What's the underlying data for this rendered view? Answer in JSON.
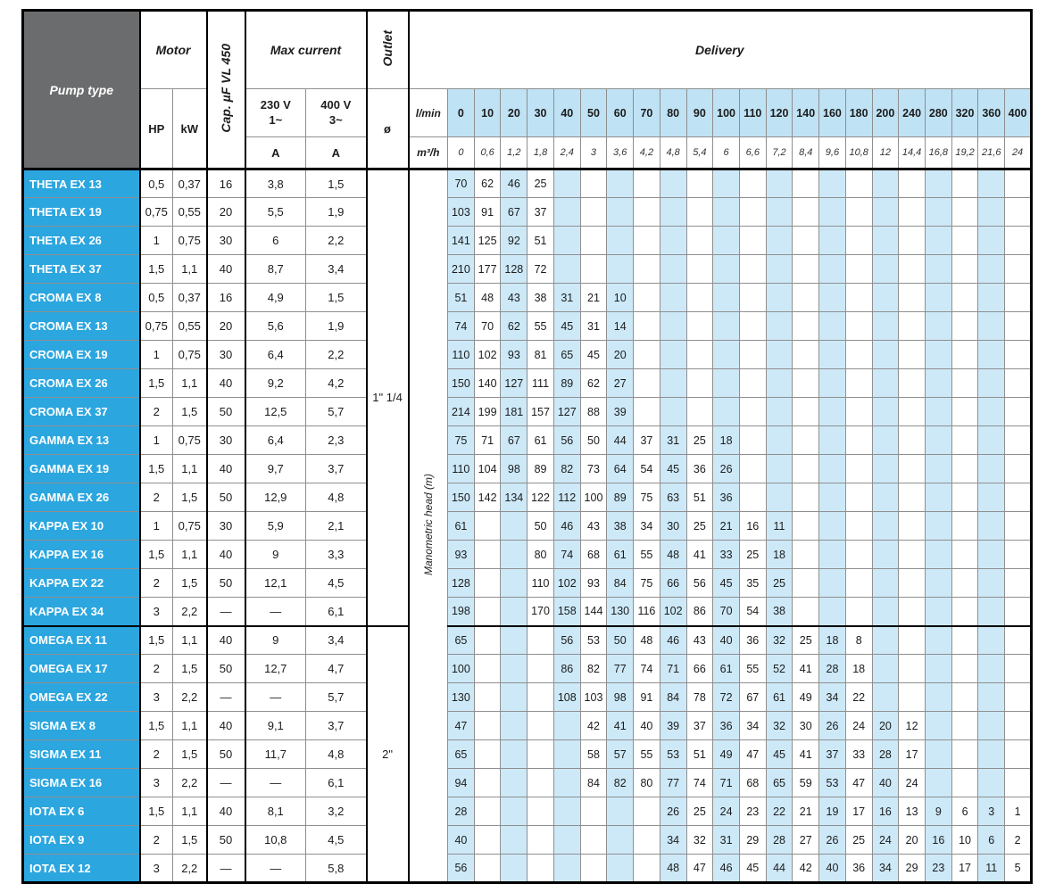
{
  "header": {
    "pump_type": "Pump type",
    "motor": "Motor",
    "hp": "HP",
    "kw": "kW",
    "cap": "Cap. µF VL 450",
    "max_current": "Max current",
    "v230": "230 V\n1~",
    "v400": "400 V\n3~",
    "amp1": "A",
    "amp2": "A",
    "outlet": "Outlet",
    "diameter": "ø",
    "delivery": "Delivery",
    "flow_unit_lmin": "l/min",
    "flow_unit_m3h": "m³/h",
    "manometric_head": "Manometric head (m)"
  },
  "colors": {
    "pump_name_bg": "#2ba6df",
    "header_gray_bg": "#6b6c6e",
    "shade_blue": "#cde9f8",
    "flow_header_bg": "#bfe2f4"
  },
  "flow_lmin": [
    "0",
    "10",
    "20",
    "30",
    "40",
    "50",
    "60",
    "70",
    "80",
    "90",
    "100",
    "110",
    "120",
    "140",
    "160",
    "180",
    "200",
    "240",
    "280",
    "320",
    "360",
    "400"
  ],
  "flow_m3h": [
    "0",
    "0,6",
    "1,2",
    "1,8",
    "2,4",
    "3",
    "3,6",
    "4,2",
    "4,8",
    "5,4",
    "6",
    "6,6",
    "7,2",
    "8,4",
    "9,6",
    "10,8",
    "12",
    "14,4",
    "16,8",
    "19,2",
    "21,6",
    "24"
  ],
  "outlets": [
    {
      "label": "1\" 1/4",
      "row_span": 16
    },
    {
      "label": "2\"",
      "row_span": 9
    }
  ],
  "rows": [
    {
      "name": "THETA EX 13",
      "hp": "0,5",
      "kw": "0,37",
      "cap": "16",
      "a230": "3,8",
      "a400": "1,5",
      "head": [
        "70",
        "62",
        "46",
        "25",
        "",
        "",
        "",
        "",
        "",
        "",
        "",
        "",
        "",
        "",
        "",
        "",
        "",
        "",
        "",
        "",
        "",
        ""
      ]
    },
    {
      "name": "THETA EX 19",
      "hp": "0,75",
      "kw": "0,55",
      "cap": "20",
      "a230": "5,5",
      "a400": "1,9",
      "head": [
        "103",
        "91",
        "67",
        "37",
        "",
        "",
        "",
        "",
        "",
        "",
        "",
        "",
        "",
        "",
        "",
        "",
        "",
        "",
        "",
        "",
        "",
        ""
      ]
    },
    {
      "name": "THETA EX 26",
      "hp": "1",
      "kw": "0,75",
      "cap": "30",
      "a230": "6",
      "a400": "2,2",
      "head": [
        "141",
        "125",
        "92",
        "51",
        "",
        "",
        "",
        "",
        "",
        "",
        "",
        "",
        "",
        "",
        "",
        "",
        "",
        "",
        "",
        "",
        "",
        ""
      ]
    },
    {
      "name": "THETA EX 37",
      "hp": "1,5",
      "kw": "1,1",
      "cap": "40",
      "a230": "8,7",
      "a400": "3,4",
      "head": [
        "210",
        "177",
        "128",
        "72",
        "",
        "",
        "",
        "",
        "",
        "",
        "",
        "",
        "",
        "",
        "",
        "",
        "",
        "",
        "",
        "",
        "",
        ""
      ]
    },
    {
      "name": "CROMA EX 8",
      "hp": "0,5",
      "kw": "0,37",
      "cap": "16",
      "a230": "4,9",
      "a400": "1,5",
      "head": [
        "51",
        "48",
        "43",
        "38",
        "31",
        "21",
        "10",
        "",
        "",
        "",
        "",
        "",
        "",
        "",
        "",
        "",
        "",
        "",
        "",
        "",
        "",
        ""
      ]
    },
    {
      "name": "CROMA EX 13",
      "hp": "0,75",
      "kw": "0,55",
      "cap": "20",
      "a230": "5,6",
      "a400": "1,9",
      "head": [
        "74",
        "70",
        "62",
        "55",
        "45",
        "31",
        "14",
        "",
        "",
        "",
        "",
        "",
        "",
        "",
        "",
        "",
        "",
        "",
        "",
        "",
        "",
        ""
      ]
    },
    {
      "name": "CROMA EX 19",
      "hp": "1",
      "kw": "0,75",
      "cap": "30",
      "a230": "6,4",
      "a400": "2,2",
      "head": [
        "110",
        "102",
        "93",
        "81",
        "65",
        "45",
        "20",
        "",
        "",
        "",
        "",
        "",
        "",
        "",
        "",
        "",
        "",
        "",
        "",
        "",
        "",
        ""
      ]
    },
    {
      "name": "CROMA EX 26",
      "hp": "1,5",
      "kw": "1,1",
      "cap": "40",
      "a230": "9,2",
      "a400": "4,2",
      "head": [
        "150",
        "140",
        "127",
        "111",
        "89",
        "62",
        "27",
        "",
        "",
        "",
        "",
        "",
        "",
        "",
        "",
        "",
        "",
        "",
        "",
        "",
        "",
        ""
      ]
    },
    {
      "name": "CROMA EX 37",
      "hp": "2",
      "kw": "1,5",
      "cap": "50",
      "a230": "12,5",
      "a400": "5,7",
      "head": [
        "214",
        "199",
        "181",
        "157",
        "127",
        "88",
        "39",
        "",
        "",
        "",
        "",
        "",
        "",
        "",
        "",
        "",
        "",
        "",
        "",
        "",
        "",
        ""
      ]
    },
    {
      "name": "GAMMA EX 13",
      "hp": "1",
      "kw": "0,75",
      "cap": "30",
      "a230": "6,4",
      "a400": "2,3",
      "head": [
        "75",
        "71",
        "67",
        "61",
        "56",
        "50",
        "44",
        "37",
        "31",
        "25",
        "18",
        "",
        "",
        "",
        "",
        "",
        "",
        "",
        "",
        "",
        "",
        ""
      ]
    },
    {
      "name": "GAMMA EX 19",
      "hp": "1,5",
      "kw": "1,1",
      "cap": "40",
      "a230": "9,7",
      "a400": "3,7",
      "head": [
        "110",
        "104",
        "98",
        "89",
        "82",
        "73",
        "64",
        "54",
        "45",
        "36",
        "26",
        "",
        "",
        "",
        "",
        "",
        "",
        "",
        "",
        "",
        "",
        ""
      ]
    },
    {
      "name": "GAMMA EX 26",
      "hp": "2",
      "kw": "1,5",
      "cap": "50",
      "a230": "12,9",
      "a400": "4,8",
      "head": [
        "150",
        "142",
        "134",
        "122",
        "112",
        "100",
        "89",
        "75",
        "63",
        "51",
        "36",
        "",
        "",
        "",
        "",
        "",
        "",
        "",
        "",
        "",
        "",
        ""
      ]
    },
    {
      "name": "KAPPA EX 10",
      "hp": "1",
      "kw": "0,75",
      "cap": "30",
      "a230": "5,9",
      "a400": "2,1",
      "head": [
        "61",
        "",
        "",
        "50",
        "46",
        "43",
        "38",
        "34",
        "30",
        "25",
        "21",
        "16",
        "11",
        "",
        "",
        "",
        "",
        "",
        "",
        "",
        "",
        ""
      ]
    },
    {
      "name": "KAPPA EX 16",
      "hp": "1,5",
      "kw": "1,1",
      "cap": "40",
      "a230": "9",
      "a400": "3,3",
      "head": [
        "93",
        "",
        "",
        "80",
        "74",
        "68",
        "61",
        "55",
        "48",
        "41",
        "33",
        "25",
        "18",
        "",
        "",
        "",
        "",
        "",
        "",
        "",
        "",
        ""
      ]
    },
    {
      "name": "KAPPA EX 22",
      "hp": "2",
      "kw": "1,5",
      "cap": "50",
      "a230": "12,1",
      "a400": "4,5",
      "head": [
        "128",
        "",
        "",
        "110",
        "102",
        "93",
        "84",
        "75",
        "66",
        "56",
        "45",
        "35",
        "25",
        "",
        "",
        "",
        "",
        "",
        "",
        "",
        "",
        ""
      ]
    },
    {
      "name": "KAPPA EX 34",
      "hp": "3",
      "kw": "2,2",
      "cap": "—",
      "a230": "—",
      "a400": "6,1",
      "head": [
        "198",
        "",
        "",
        "170",
        "158",
        "144",
        "130",
        "116",
        "102",
        "86",
        "70",
        "54",
        "38",
        "",
        "",
        "",
        "",
        "",
        "",
        "",
        "",
        ""
      ]
    },
    {
      "name": "OMEGA EX 11",
      "hp": "1,5",
      "kw": "1,1",
      "cap": "40",
      "a230": "9",
      "a400": "3,4",
      "head": [
        "65",
        "",
        "",
        "",
        "56",
        "53",
        "50",
        "48",
        "46",
        "43",
        "40",
        "36",
        "32",
        "25",
        "18",
        "8",
        "",
        "",
        "",
        "",
        "",
        ""
      ]
    },
    {
      "name": "OMEGA EX 17",
      "hp": "2",
      "kw": "1,5",
      "cap": "50",
      "a230": "12,7",
      "a400": "4,7",
      "head": [
        "100",
        "",
        "",
        "",
        "86",
        "82",
        "77",
        "74",
        "71",
        "66",
        "61",
        "55",
        "52",
        "41",
        "28",
        "18",
        "",
        "",
        "",
        "",
        "",
        ""
      ]
    },
    {
      "name": "OMEGA EX 22",
      "hp": "3",
      "kw": "2,2",
      "cap": "—",
      "a230": "—",
      "a400": "5,7",
      "head": [
        "130",
        "",
        "",
        "",
        "108",
        "103",
        "98",
        "91",
        "84",
        "78",
        "72",
        "67",
        "61",
        "49",
        "34",
        "22",
        "",
        "",
        "",
        "",
        "",
        ""
      ]
    },
    {
      "name": "SIGMA EX 8",
      "hp": "1,5",
      "kw": "1,1",
      "cap": "40",
      "a230": "9,1",
      "a400": "3,7",
      "head": [
        "47",
        "",
        "",
        "",
        "",
        "42",
        "41",
        "40",
        "39",
        "37",
        "36",
        "34",
        "32",
        "30",
        "26",
        "24",
        "20",
        "12",
        "",
        "",
        "",
        ""
      ]
    },
    {
      "name": "SIGMA EX 11",
      "hp": "2",
      "kw": "1,5",
      "cap": "50",
      "a230": "11,7",
      "a400": "4,8",
      "head": [
        "65",
        "",
        "",
        "",
        "",
        "58",
        "57",
        "55",
        "53",
        "51",
        "49",
        "47",
        "45",
        "41",
        "37",
        "33",
        "28",
        "17",
        "",
        "",
        "",
        ""
      ]
    },
    {
      "name": "SIGMA EX 16",
      "hp": "3",
      "kw": "2,2",
      "cap": "—",
      "a230": "—",
      "a400": "6,1",
      "head": [
        "94",
        "",
        "",
        "",
        "",
        "84",
        "82",
        "80",
        "77",
        "74",
        "71",
        "68",
        "65",
        "59",
        "53",
        "47",
        "40",
        "24",
        "",
        "",
        "",
        ""
      ]
    },
    {
      "name": "IOTA EX 6",
      "hp": "1,5",
      "kw": "1,1",
      "cap": "40",
      "a230": "8,1",
      "a400": "3,2",
      "head": [
        "28",
        "",
        "",
        "",
        "",
        "",
        "",
        "",
        "26",
        "25",
        "24",
        "23",
        "22",
        "21",
        "19",
        "17",
        "16",
        "13",
        "9",
        "6",
        "3",
        "1"
      ]
    },
    {
      "name": "IOTA EX 9",
      "hp": "2",
      "kw": "1,5",
      "cap": "50",
      "a230": "10,8",
      "a400": "4,5",
      "head": [
        "40",
        "",
        "",
        "",
        "",
        "",
        "",
        "",
        "34",
        "32",
        "31",
        "29",
        "28",
        "27",
        "26",
        "25",
        "24",
        "20",
        "16",
        "10",
        "6",
        "2"
      ]
    },
    {
      "name": "IOTA EX 12",
      "hp": "3",
      "kw": "2,2",
      "cap": "—",
      "a230": "—",
      "a400": "5,8",
      "head": [
        "56",
        "",
        "",
        "",
        "",
        "",
        "",
        "",
        "48",
        "47",
        "46",
        "45",
        "44",
        "42",
        "40",
        "36",
        "34",
        "29",
        "23",
        "17",
        "11",
        "5"
      ]
    }
  ]
}
